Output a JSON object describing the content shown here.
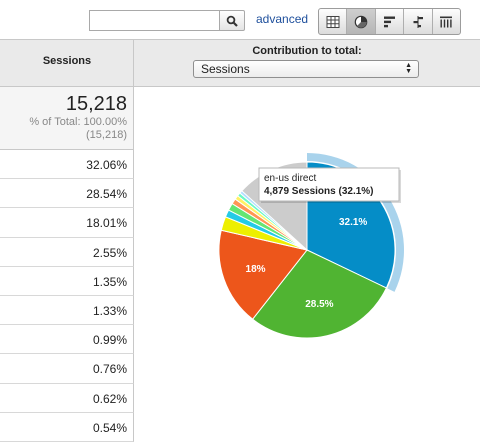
{
  "toolbar": {
    "search_value": "",
    "search_button_icon": "magnifier-icon",
    "advanced_label": "advanced",
    "view_buttons": [
      "table-view-icon",
      "pie-view-icon",
      "performance-view-icon",
      "comparison-view-icon",
      "pivot-view-icon"
    ],
    "active_view": "pie-view-icon"
  },
  "table": {
    "sessions_header": "Sessions",
    "contribution_header": "Contribution to total:",
    "metric_selected": "Sessions",
    "total_value": "15,218",
    "total_pct": "% of Total: 100.00%",
    "total_abs": "(15,218)",
    "rows": [
      "32.06%",
      "28.54%",
      "18.01%",
      "2.55%",
      "1.35%",
      "1.33%",
      "0.99%",
      "0.76%",
      "0.62%",
      "0.54%"
    ]
  },
  "colors": {
    "accent_link": "#1e4f9c",
    "highlight_ring": "#a9d3ec"
  },
  "chart_data": {
    "type": "pie",
    "slices": [
      {
        "value": 32.1,
        "label": "32.1%",
        "color": "#058dc7"
      },
      {
        "value": 28.5,
        "label": "28.5%",
        "color": "#50b432"
      },
      {
        "value": 18.0,
        "label": "18%",
        "color": "#ed561b"
      },
      {
        "value": 2.55,
        "label": "",
        "color": "#edef00"
      },
      {
        "value": 1.35,
        "label": "",
        "color": "#24cbe5"
      },
      {
        "value": 1.33,
        "label": "",
        "color": "#64e572"
      },
      {
        "value": 0.99,
        "label": "",
        "color": "#ff9655"
      },
      {
        "value": 0.76,
        "label": "",
        "color": "#fff263"
      },
      {
        "value": 0.62,
        "label": "",
        "color": "#6af9c4"
      },
      {
        "value": 0.54,
        "label": "",
        "color": "#b2deff"
      },
      {
        "value": 13.26,
        "label": "",
        "color": "#cccccc"
      }
    ],
    "tooltip": {
      "title": "en-us direct",
      "value_text": "4,879 Sessions (32.1%)"
    },
    "highlighted_slice": 0
  }
}
